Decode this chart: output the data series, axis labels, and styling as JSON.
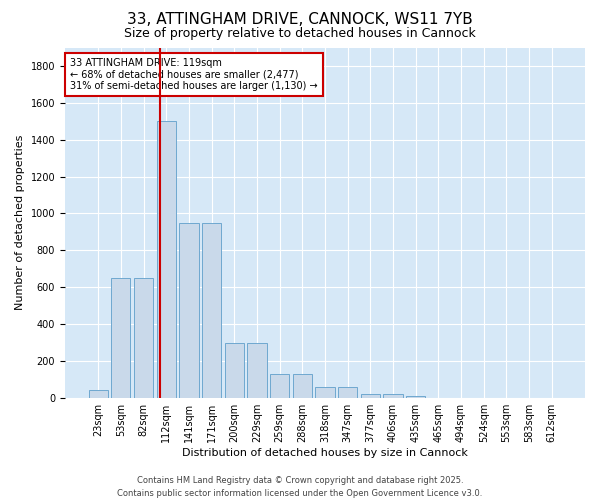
{
  "title": "33, ATTINGHAM DRIVE, CANNOCK, WS11 7YB",
  "subtitle": "Size of property relative to detached houses in Cannock",
  "xlabel": "Distribution of detached houses by size in Cannock",
  "ylabel": "Number of detached properties",
  "categories": [
    "23sqm",
    "53sqm",
    "82sqm",
    "112sqm",
    "141sqm",
    "171sqm",
    "200sqm",
    "229sqm",
    "259sqm",
    "288sqm",
    "318sqm",
    "347sqm",
    "377sqm",
    "406sqm",
    "435sqm",
    "465sqm",
    "494sqm",
    "524sqm",
    "553sqm",
    "583sqm",
    "612sqm"
  ],
  "values": [
    40,
    650,
    650,
    1500,
    950,
    950,
    295,
    295,
    130,
    130,
    60,
    60,
    20,
    20,
    8,
    0,
    0,
    0,
    0,
    0,
    0
  ],
  "bar_color": "#c9d9ea",
  "bar_edge_color": "#6fa8d0",
  "vline_color": "#cc0000",
  "vline_pos": 3.24,
  "annotation_text": "33 ATTINGHAM DRIVE: 119sqm\n← 68% of detached houses are smaller (2,477)\n31% of semi-detached houses are larger (1,130) →",
  "annotation_box_edgecolor": "#cc0000",
  "ylim": [
    0,
    1900
  ],
  "yticks": [
    0,
    200,
    400,
    600,
    800,
    1000,
    1200,
    1400,
    1600,
    1800
  ],
  "fig_bg_color": "#ffffff",
  "plot_bg_color": "#d6e8f7",
  "grid_color": "#ffffff",
  "title_fontsize": 11,
  "subtitle_fontsize": 9,
  "tick_fontsize": 7,
  "ylabel_fontsize": 8,
  "xlabel_fontsize": 8,
  "footer_line1": "Contains HM Land Registry data © Crown copyright and database right 2025.",
  "footer_line2": "Contains public sector information licensed under the Open Government Licence v3.0."
}
